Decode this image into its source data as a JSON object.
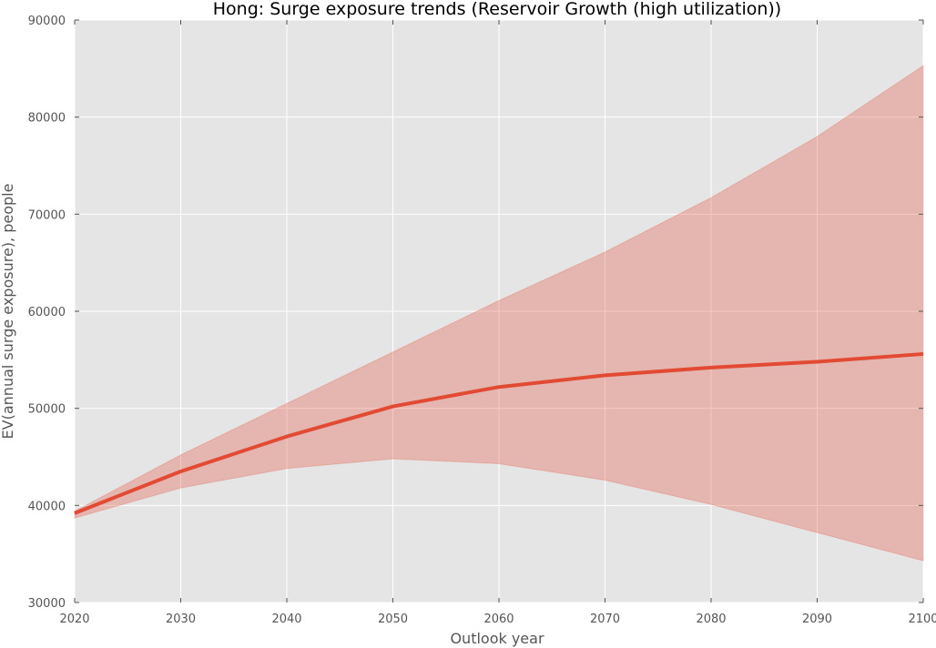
{
  "chart_data": {
    "type": "line",
    "title": "Hong: Surge exposure trends (Reservoir Growth (high utilization))",
    "xlabel": "Outlook year",
    "ylabel": "EV(annual surge exposure), people",
    "xlim": [
      2020,
      2100
    ],
    "ylim": [
      30000,
      90000
    ],
    "x_ticks": [
      "2020",
      "2030",
      "2040",
      "2050",
      "2060",
      "2070",
      "2080",
      "2090",
      "2100"
    ],
    "y_ticks": [
      "30000",
      "40000",
      "50000",
      "60000",
      "70000",
      "80000",
      "90000"
    ],
    "grid": true,
    "x": [
      2020,
      2030,
      2040,
      2050,
      2060,
      2070,
      2080,
      2090,
      2100
    ],
    "series": [
      {
        "values": [
          39200,
          43500,
          47100,
          50200,
          52200,
          53400,
          54200,
          54800,
          55600
        ],
        "band_upper": [
          39400,
          45200,
          50500,
          55800,
          61100,
          66100,
          71700,
          78000,
          85300
        ],
        "band_lower": [
          38700,
          41800,
          43800,
          44800,
          44300,
          42600,
          40100,
          37200,
          34300
        ],
        "color": "#e24a33"
      }
    ],
    "plot_background": "#e5e5e5",
    "grid_color": "#ffffff"
  }
}
